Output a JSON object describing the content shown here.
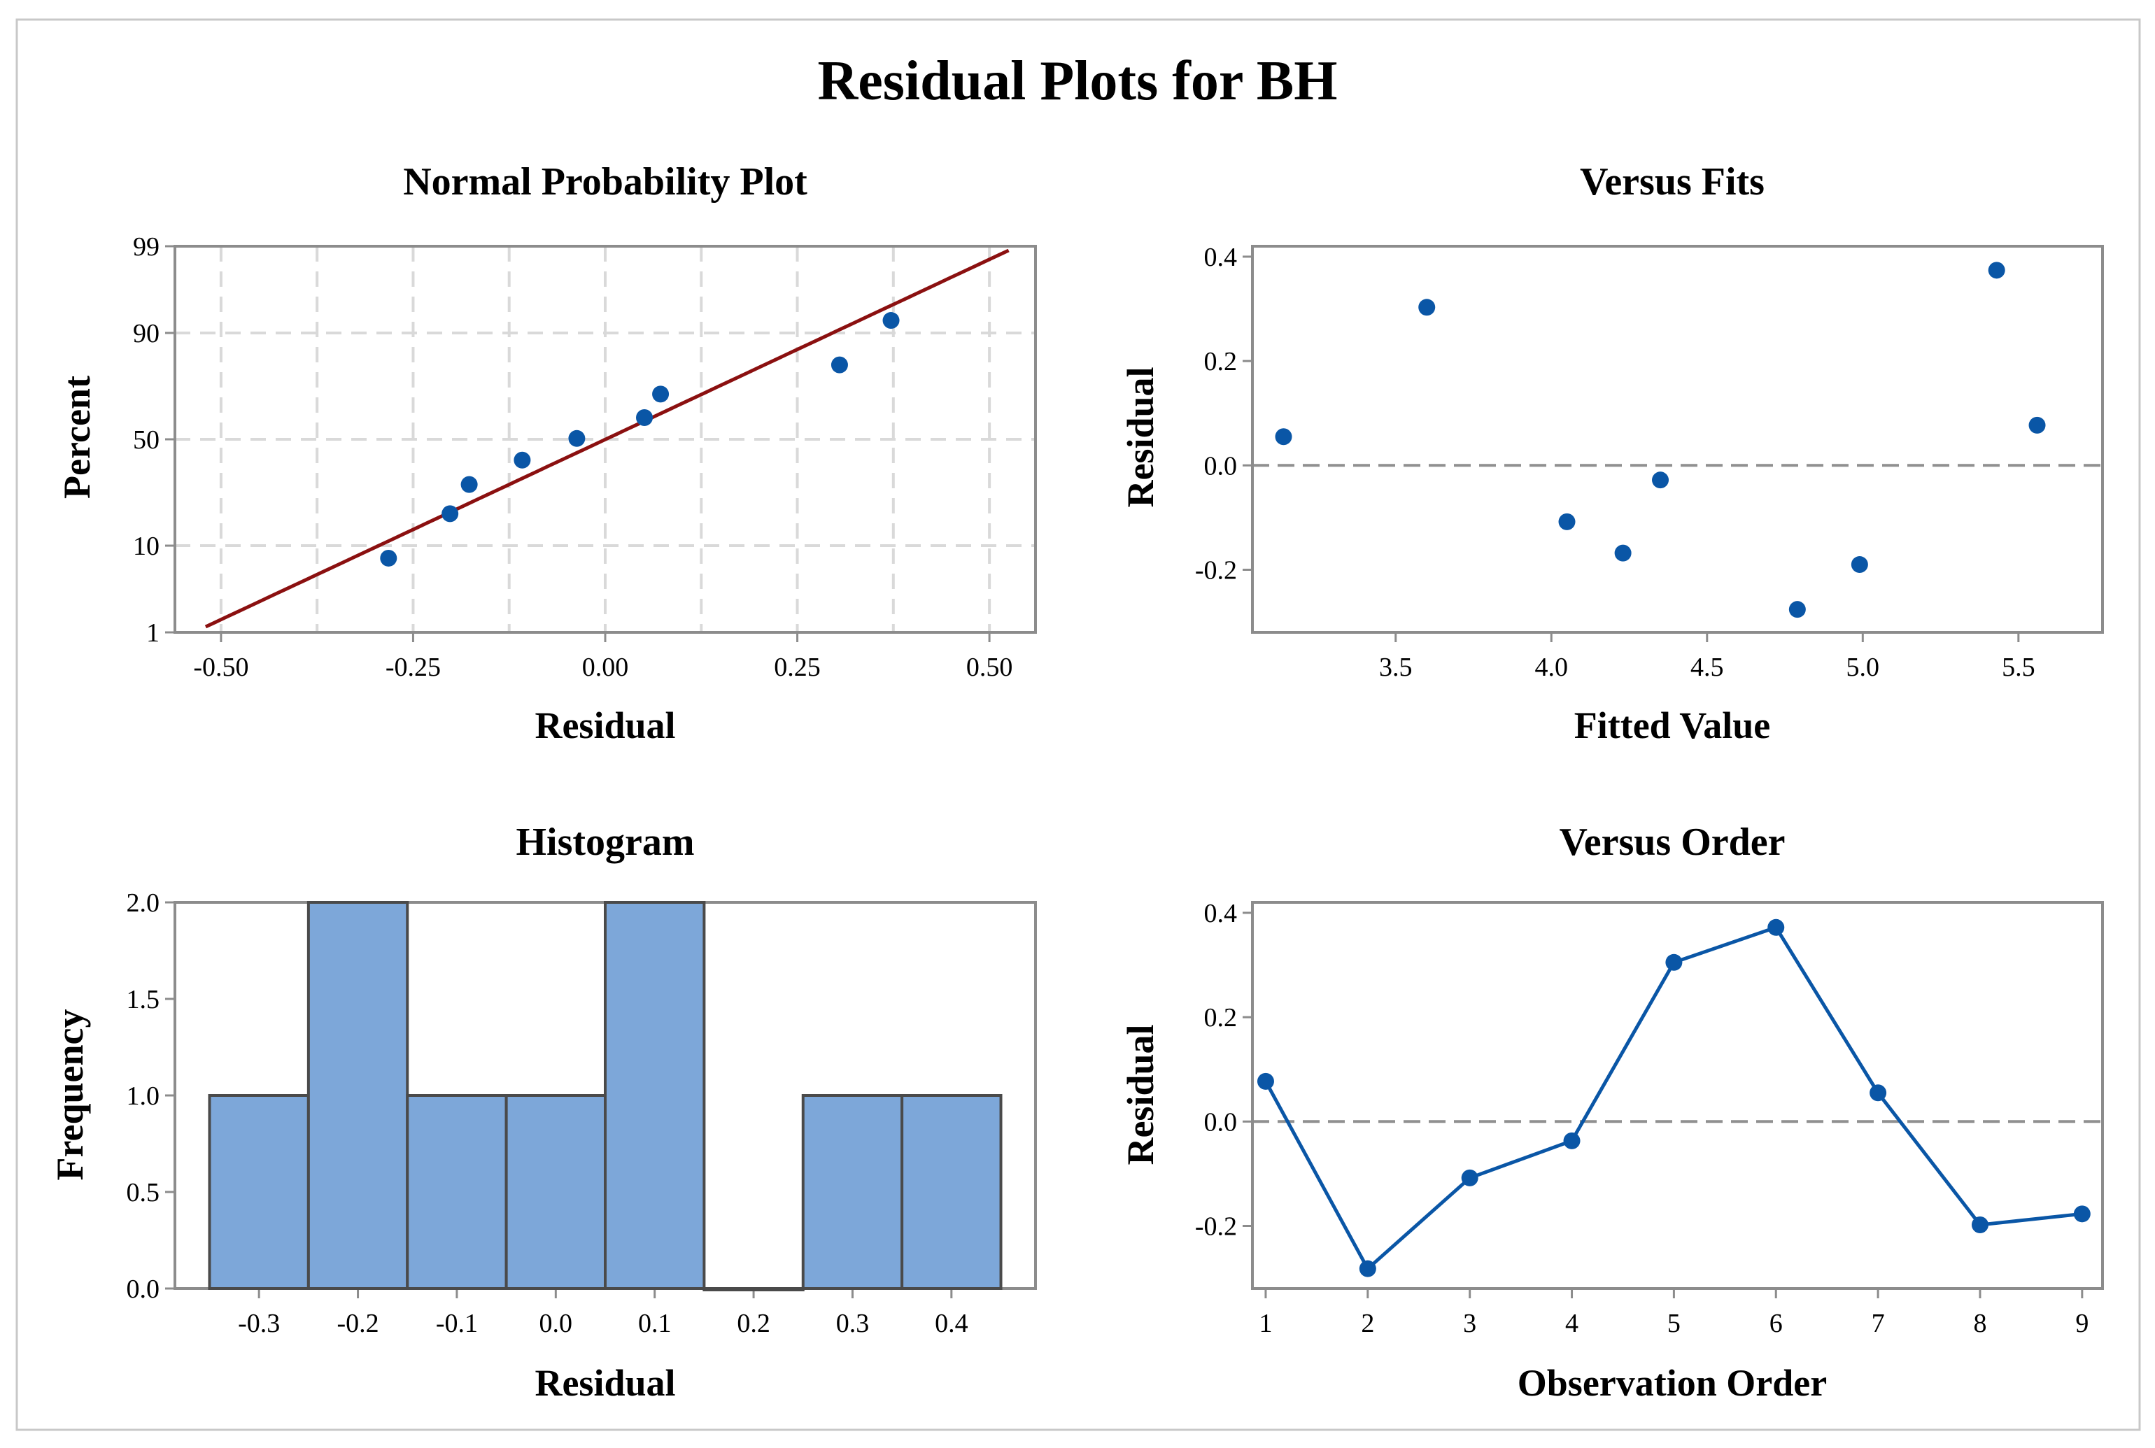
{
  "title": "Residual Plots for BH",
  "colors": {
    "frame": "#c8c8c8",
    "axis": "#8c8c8c",
    "grid": "#d9d9d9",
    "point": "#0a56a6",
    "fit_line": "#8b1010",
    "bar_fill": "#7da7d9",
    "bar_edge": "#4a4a4a",
    "ref_line": "#909090"
  },
  "chart_data": [
    {
      "id": "normal",
      "type": "scatter",
      "title": "Normal Probability Plot",
      "xlabel": "Residual",
      "ylabel": "Percent",
      "xlim": [
        -0.56,
        0.56
      ],
      "x_ticks": [
        -0.5,
        -0.25,
        0.0,
        0.25,
        0.5
      ],
      "x_tick_labels": [
        "-0.50",
        "-0.25",
        "0.00",
        "0.25",
        "0.50"
      ],
      "x_grid": [
        -0.5,
        -0.375,
        -0.25,
        -0.125,
        0.0,
        0.125,
        0.25,
        0.375,
        0.5
      ],
      "y_ticks": [
        1,
        10,
        50,
        90,
        99
      ],
      "y_tick_labels": [
        "1",
        "10",
        "50",
        "90",
        "99"
      ],
      "y_grid": [
        10,
        50,
        90
      ],
      "fit_line": {
        "x_start": -0.52,
        "x_end": 0.525
      },
      "points": [
        {
          "x": -0.282,
          "p": 7.6
        },
        {
          "x": -0.202,
          "p": 18.5
        },
        {
          "x": -0.177,
          "p": 29.3
        },
        {
          "x": -0.108,
          "p": 40.1
        },
        {
          "x": -0.037,
          "p": 50.4
        },
        {
          "x": 0.051,
          "p": 60.3
        },
        {
          "x": 0.072,
          "p": 70.7
        },
        {
          "x": 0.305,
          "p": 81.5
        },
        {
          "x": 0.372,
          "p": 92.4
        }
      ]
    },
    {
      "id": "fits",
      "type": "scatter",
      "title": "Versus Fits",
      "xlabel": "Fitted Value",
      "ylabel": "Residual",
      "xlim": [
        3.04,
        5.77
      ],
      "ylim": [
        -0.32,
        0.42
      ],
      "x_ticks": [
        3.5,
        4.0,
        4.5,
        5.0,
        5.5
      ],
      "x_tick_labels": [
        "3.5",
        "4.0",
        "4.5",
        "5.0",
        "5.5"
      ],
      "y_ticks": [
        -0.2,
        0.0,
        0.2,
        0.4
      ],
      "y_tick_labels": [
        "-0.2",
        "0.0",
        "0.2",
        "0.4"
      ],
      "ref_y": 0,
      "x": [
        3.14,
        3.6,
        4.05,
        4.23,
        4.35,
        4.79,
        4.99,
        5.43,
        5.56
      ],
      "y": [
        0.055,
        0.303,
        -0.108,
        -0.168,
        -0.028,
        -0.276,
        -0.19,
        0.374,
        0.077
      ]
    },
    {
      "id": "hist",
      "type": "bar",
      "title": "Histogram",
      "xlabel": "Residual",
      "ylabel": "Frequency",
      "xlim": [
        -0.385,
        0.485
      ],
      "ylim": [
        0,
        2.0
      ],
      "x_ticks": [
        -0.3,
        -0.2,
        -0.1,
        0.0,
        0.1,
        0.2,
        0.3,
        0.4
      ],
      "x_tick_labels": [
        "-0.3",
        "-0.2",
        "-0.1",
        "0.0",
        "0.1",
        "0.2",
        "0.3",
        "0.4"
      ],
      "y_ticks": [
        0.0,
        0.5,
        1.0,
        1.5,
        2.0
      ],
      "y_tick_labels": [
        "0.0",
        "0.5",
        "1.0",
        "1.5",
        "2.0"
      ],
      "bin_width": 0.1,
      "categories": [
        -0.3,
        -0.2,
        -0.1,
        0.0,
        0.1,
        0.2,
        0.3,
        0.4
      ],
      "values": [
        1,
        2,
        1,
        1,
        2,
        0,
        1,
        1
      ]
    },
    {
      "id": "order",
      "type": "line",
      "title": "Versus Order",
      "xlabel": "Observation Order",
      "ylabel": "Residual",
      "xlim": [
        0.87,
        9.2
      ],
      "ylim": [
        -0.32,
        0.42
      ],
      "x_ticks": [
        1,
        2,
        3,
        4,
        5,
        6,
        7,
        8,
        9
      ],
      "x_tick_labels": [
        "1",
        "2",
        "3",
        "4",
        "5",
        "6",
        "7",
        "8",
        "9"
      ],
      "y_ticks": [
        -0.2,
        0.0,
        0.2,
        0.4
      ],
      "y_tick_labels": [
        "-0.2",
        "0.0",
        "0.2",
        "0.4"
      ],
      "ref_y": 0,
      "x": [
        1,
        2,
        3,
        4,
        5,
        6,
        7,
        8,
        9
      ],
      "y": [
        0.077,
        -0.282,
        -0.108,
        -0.037,
        0.305,
        0.372,
        0.055,
        -0.198,
        -0.177
      ]
    }
  ]
}
